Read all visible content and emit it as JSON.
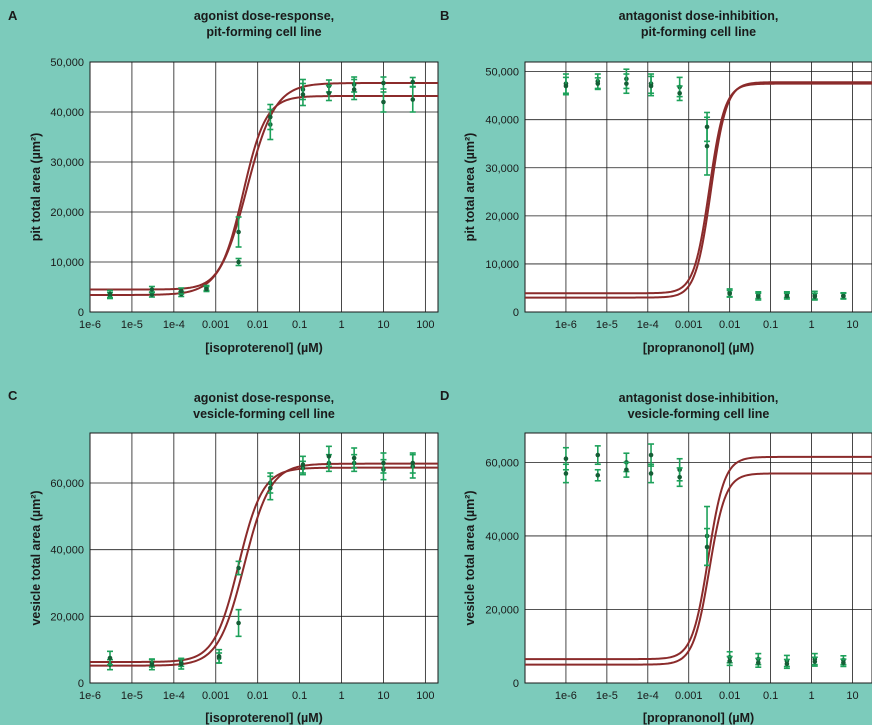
{
  "chart_data": [
    {
      "panel": "A",
      "type": "scatter",
      "title": [
        "agonist dose-response,",
        "pit-forming cell line"
      ],
      "xlabel": "[isoproterenol] (µM)",
      "ylabel": "pit total area (µm²)",
      "x_scale": "log",
      "xlim": [
        1e-06,
        200
      ],
      "ylim": [
        0,
        50000
      ],
      "x_ticks": [
        "1e-6",
        "1e-5",
        "1e-4",
        "0.001",
        "0.01",
        "0.1",
        "1",
        "10",
        "100"
      ],
      "x_tick_values": [
        1e-06,
        1e-05,
        0.0001,
        0.001,
        0.01,
        0.1,
        1,
        10,
        100
      ],
      "y_ticks": [
        "0",
        "10,000",
        "20,000",
        "30,000",
        "40,000",
        "50,000"
      ],
      "y_tick_values": [
        0,
        10000,
        20000,
        30000,
        40000,
        50000
      ],
      "series": [
        {
          "x": [
            3e-06,
            3e-05,
            0.00015,
            0.0006,
            0.0035,
            0.02,
            0.12,
            0.5,
            2,
            10,
            50
          ],
          "y": [
            3300,
            3500,
            3600,
            4800,
            10000,
            37500,
            44500,
            45200,
            45500,
            45800,
            46000
          ],
          "err": [
            600,
            500,
            500,
            500,
            700,
            3000,
            2000,
            1200,
            1500,
            1200,
            900
          ],
          "fit": {
            "bottom": 3400,
            "top": 45800,
            "ec50": 0.0055,
            "hill": 1.3
          }
        },
        {
          "x": [
            3e-06,
            3e-05,
            0.00015,
            0.0006,
            0.0035,
            0.02,
            0.12,
            0.5,
            2,
            10,
            50
          ],
          "y": [
            3600,
            4500,
            4200,
            4600,
            16000,
            39000,
            43500,
            43800,
            44500,
            42000,
            42500
          ],
          "err": [
            700,
            600,
            600,
            500,
            3000,
            2500,
            2200,
            1500,
            2000,
            2000,
            2500
          ],
          "fit": {
            "bottom": 4500,
            "top": 43200,
            "ec50": 0.0045,
            "hill": 1.6
          }
        }
      ]
    },
    {
      "panel": "B",
      "type": "scatter",
      "title": [
        "antagonist dose-inhibition,",
        "pit-forming cell line"
      ],
      "xlabel": "[propranonol] (µM)",
      "ylabel": "pit total area (µm²)",
      "x_scale": "log",
      "xlim": [
        1e-07,
        30
      ],
      "ylim": [
        0,
        52000
      ],
      "x_ticks": [
        "1e-6",
        "1e-5",
        "1e-4",
        "0.001",
        "0.01",
        "0.1",
        "1",
        "10"
      ],
      "x_tick_values": [
        1e-06,
        1e-05,
        0.0001,
        0.001,
        0.01,
        0.1,
        1,
        10
      ],
      "y_ticks": [
        "0",
        "10,000",
        "20,000",
        "30,000",
        "40,000",
        "50,000"
      ],
      "y_tick_values": [
        0,
        10000,
        20000,
        30000,
        40000,
        50000
      ],
      "series": [
        {
          "x": [
            1e-06,
            6e-06,
            3e-05,
            0.00012,
            0.0006,
            0.0028,
            0.01,
            0.05,
            0.25,
            1.2,
            6
          ],
          "y": [
            47500,
            48000,
            48500,
            47500,
            46800,
            34500,
            4000,
            3500,
            3600,
            3500,
            3400
          ],
          "err": [
            2000,
            1500,
            2000,
            2000,
            2000,
            6000,
            800,
            700,
            600,
            800,
            600
          ],
          "fit": {
            "bottom": 3000,
            "top": 47800,
            "ec50": 0.0035,
            "hill": 2.3
          }
        },
        {
          "x": [
            1e-06,
            6e-06,
            3e-05,
            0.00012,
            0.0006,
            0.0028,
            0.01,
            0.05,
            0.25,
            1.2,
            6
          ],
          "y": [
            47000,
            47500,
            47500,
            47000,
            45500,
            38500,
            3800,
            3200,
            3300,
            3200,
            3300
          ],
          "err": [
            1800,
            1200,
            2000,
            2000,
            1500,
            3000,
            700,
            700,
            600,
            700,
            600
          ],
          "fit": {
            "bottom": 3900,
            "top": 47500,
            "ec50": 0.0032,
            "hill": 2.3
          }
        }
      ]
    },
    {
      "panel": "C",
      "type": "scatter",
      "title": [
        "agonist dose-response,",
        "vesicle-forming cell line"
      ],
      "xlabel": "[isoproterenol] (µM)",
      "ylabel": "vesicle total area (µm²)",
      "x_scale": "log",
      "xlim": [
        1e-06,
        200
      ],
      "ylim": [
        0,
        75000
      ],
      "x_ticks": [
        "1e-6",
        "1e-5",
        "1e-4",
        "0.001",
        "0.01",
        "0.1",
        "1",
        "10",
        "100"
      ],
      "x_tick_values": [
        1e-06,
        1e-05,
        0.0001,
        0.001,
        0.01,
        0.1,
        1,
        10,
        100
      ],
      "y_ticks": [
        "0",
        "20,000",
        "40,000",
        "60,000"
      ],
      "y_tick_values": [
        0,
        20000,
        40000,
        60000
      ],
      "series": [
        {
          "x": [
            3e-06,
            3e-05,
            0.00015,
            0.0012,
            0.0035,
            0.02,
            0.12,
            0.5,
            2,
            10,
            50
          ],
          "y": [
            5500,
            6000,
            6200,
            7500,
            18000,
            60000,
            64500,
            66000,
            66000,
            64000,
            65000
          ],
          "err": [
            1500,
            1200,
            1200,
            1500,
            4000,
            3000,
            2000,
            2500,
            2500,
            3000,
            3500
          ],
          "fit": {
            "bottom": 5200,
            "top": 65800,
            "ec50": 0.0048,
            "hill": 1.4
          }
        },
        {
          "x": [
            3e-06,
            3e-05,
            0.00015,
            0.0012,
            0.0035,
            0.02,
            0.12,
            0.5,
            2,
            10,
            50
          ],
          "y": [
            7500,
            5500,
            5700,
            8000,
            34500,
            58500,
            65500,
            68000,
            67500,
            66000,
            66000
          ],
          "err": [
            2000,
            1500,
            1500,
            2000,
            2000,
            3500,
            2500,
            3000,
            3000,
            3000,
            3000
          ],
          "fit": {
            "bottom": 6300,
            "top": 64600,
            "ec50": 0.0035,
            "hill": 1.5
          }
        }
      ]
    },
    {
      "panel": "D",
      "type": "scatter",
      "title": [
        "antagonist dose-inhibition,",
        "vesicle-forming cell line"
      ],
      "xlabel": "[propranonol] (µM)",
      "ylabel": "vesicle total area (µm²)",
      "x_scale": "log",
      "xlim": [
        1e-07,
        30
      ],
      "ylim": [
        0,
        68000
      ],
      "x_ticks": [
        "1e-6",
        "1e-5",
        "1e-4",
        "0.001",
        "0.01",
        "0.1",
        "1",
        "10"
      ],
      "x_tick_values": [
        1e-06,
        1e-05,
        0.0001,
        0.001,
        0.01,
        0.1,
        1,
        10
      ],
      "y_ticks": [
        "0",
        "20,000",
        "40,000",
        "60,000"
      ],
      "y_tick_values": [
        0,
        20000,
        40000,
        60000
      ],
      "series": [
        {
          "x": [
            1e-06,
            6e-06,
            3e-05,
            0.00012,
            0.0006,
            0.0028,
            0.01,
            0.05,
            0.25,
            1.2,
            6
          ],
          "y": [
            61000,
            62000,
            60000,
            62000,
            58000,
            40000,
            7000,
            6500,
            6000,
            6500,
            6200
          ],
          "err": [
            3000,
            2500,
            2500,
            3000,
            3000,
            8000,
            1500,
            1500,
            1500,
            1500,
            1200
          ],
          "fit": {
            "bottom": 6500,
            "top": 61500,
            "ec50": 0.003,
            "hill": 2.2
          }
        },
        {
          "x": [
            1e-06,
            6e-06,
            3e-05,
            0.00012,
            0.0006,
            0.0028,
            0.01,
            0.05,
            0.25,
            1.2,
            6
          ],
          "y": [
            57000,
            56500,
            58000,
            57000,
            56000,
            37000,
            6000,
            5500,
            5200,
            5800,
            5500
          ],
          "err": [
            2500,
            1500,
            2000,
            2500,
            2500,
            5000,
            1200,
            1200,
            1200,
            1200,
            1000
          ],
          "fit": {
            "bottom": 5000,
            "top": 57000,
            "ec50": 0.0032,
            "hill": 2.2
          }
        }
      ]
    }
  ]
}
